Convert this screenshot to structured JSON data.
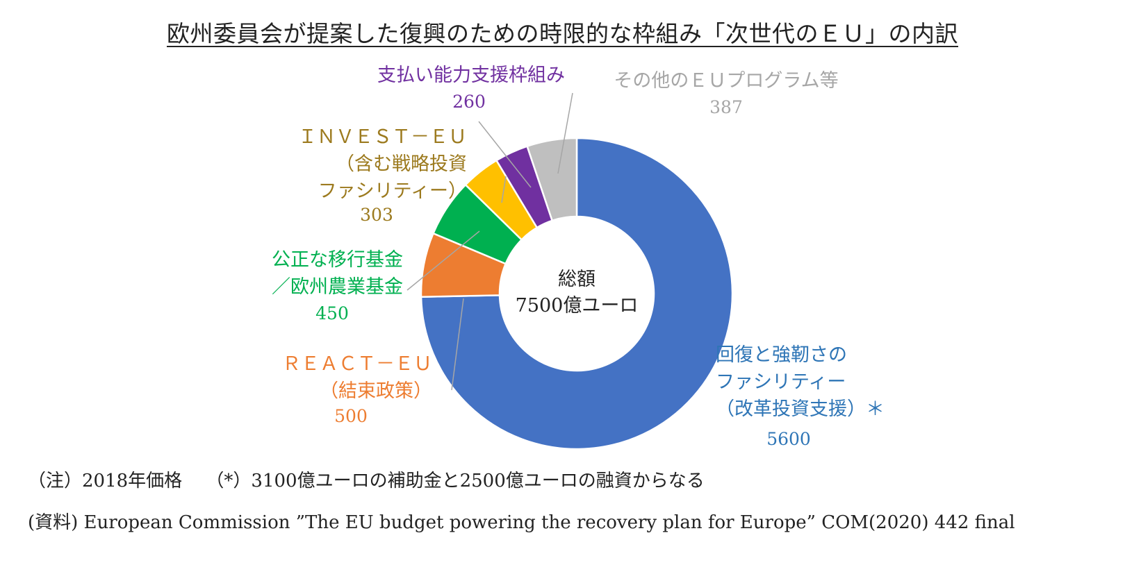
{
  "title": "欧州委員会が提案した復興のための時限的な枠組み「次世代のＥＵ」の内訳",
  "chart_data": {
    "type": "pie",
    "variant": "donut",
    "unit": "億ユーロ",
    "center_label": [
      "総額",
      "7500億ユーロ"
    ],
    "slices": [
      {
        "label": [
          "回復と強靭さの",
          "ファシリティー",
          "（改革投資支援）＊"
        ],
        "value": 5600,
        "value_label": "5600",
        "color": "#4472C4",
        "text_color": "#2E75B6"
      },
      {
        "label": [
          "ＲＥＡＣＴ－ＥＵ",
          "（結束政策）"
        ],
        "value": 500,
        "value_label": "500",
        "color": "#ED7D31",
        "text_color": "#ED7D31"
      },
      {
        "label": [
          "公正な移行基金",
          "／欧州農業基金"
        ],
        "value": 450,
        "value_label": "450",
        "color": "#00B050",
        "text_color": "#00B050"
      },
      {
        "label": [
          "ＩＮＶＥＳＴ－ＥＵ",
          "（含む戦略投資",
          "ファシリティー）"
        ],
        "value": 303,
        "value_label": "303",
        "color": "#FFC000",
        "text_color": "#9C7A1E"
      },
      {
        "label": [
          "支払い能力支援枠組み"
        ],
        "value": 260,
        "value_label": "260",
        "color": "#7030A0",
        "text_color": "#7030A0"
      },
      {
        "label": [
          "その他のＥＵプログラム等"
        ],
        "value": 387,
        "value_label": "387",
        "color": "#BFBFBF",
        "text_color": "#A6A6A6"
      }
    ]
  },
  "notes": [
    "（注）2018年価格　 （*）3100億ユーロの補助金と2500億ユーロの融資からなる",
    "(資料) European Commission ”The EU budget powering the recovery plan for Europe” COM(2020) 442 final"
  ]
}
